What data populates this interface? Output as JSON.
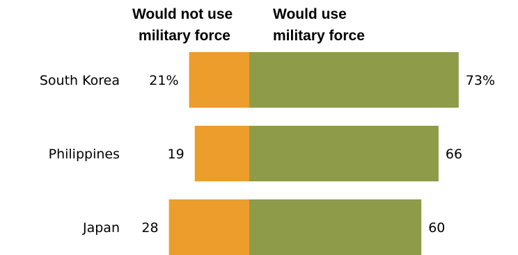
{
  "chart_data": {
    "type": "bar",
    "orientation": "horizontal",
    "layout": "diverging",
    "categories": [
      "South Korea",
      "Philippines",
      "Japan"
    ],
    "series": [
      {
        "name": "Would not use military force",
        "header_lines": [
          "Would not use",
          "military force"
        ],
        "values": [
          21,
          19,
          28
        ],
        "labels": [
          "21%",
          "19",
          "28"
        ],
        "color": "#ec9d2b"
      },
      {
        "name": "Would use military force",
        "header_lines": [
          "Would use",
          "military force"
        ],
        "values": [
          73,
          66,
          60
        ],
        "labels": [
          "73%",
          "66",
          "60"
        ],
        "color": "#8e9b48"
      }
    ],
    "unit": "%",
    "axes_visible": false,
    "grid": false,
    "legend": "top, column headers"
  }
}
